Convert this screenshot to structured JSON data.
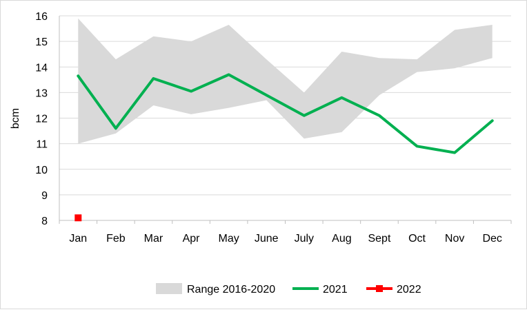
{
  "chart_data": {
    "type": "line",
    "ylabel": "bcm",
    "ylim": [
      8,
      16
    ],
    "yticks": [
      8,
      9,
      10,
      11,
      12,
      13,
      14,
      15,
      16
    ],
    "categories": [
      "Jan",
      "Feb",
      "Mar",
      "Apr",
      "May",
      "June",
      "July",
      "Aug",
      "Sept",
      "Oct",
      "Nov",
      "Dec"
    ],
    "grid": true,
    "legend_position": "bottom",
    "range": {
      "name": "Range 2016-2020",
      "color": "#d9d9d9",
      "low": [
        11.0,
        11.4,
        12.5,
        12.15,
        12.4,
        12.7,
        11.2,
        11.45,
        12.9,
        13.8,
        13.95,
        14.35
      ],
      "high": [
        15.9,
        14.3,
        15.2,
        15.0,
        15.65,
        14.3,
        13.0,
        14.6,
        14.35,
        14.3,
        15.45,
        15.65
      ]
    },
    "series": [
      {
        "name": "2021",
        "color": "#00b050",
        "values": [
          13.65,
          11.6,
          13.55,
          13.05,
          13.7,
          12.9,
          12.1,
          12.8,
          12.1,
          10.9,
          10.65,
          11.9
        ]
      },
      {
        "name": "2022",
        "color": "#ff0000",
        "values": [
          8.1,
          null,
          null,
          null,
          null,
          null,
          null,
          null,
          null,
          null,
          null,
          null
        ]
      }
    ]
  }
}
